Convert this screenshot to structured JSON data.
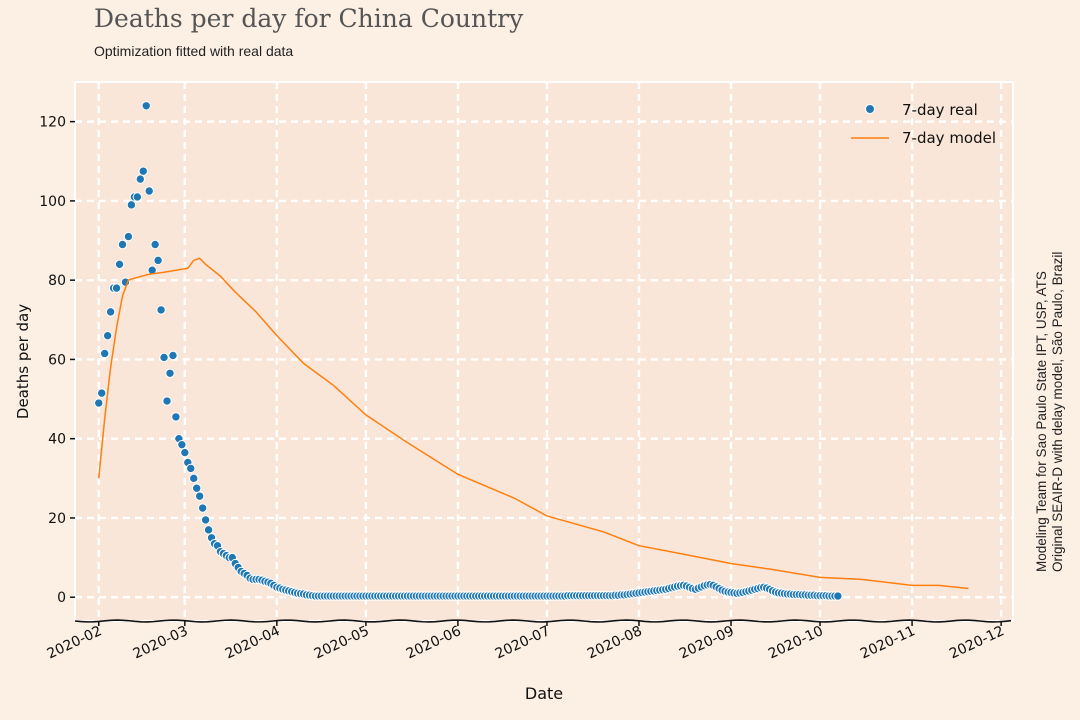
{
  "title": "Deaths per day for China Country",
  "subtitle": "Optimization fitted with real data",
  "side_note": {
    "line1": "Modeling Team for Sao Paulo State IPT, USP, ATS",
    "line2": "Original SEAIR-D with delay model, São Paulo, Brazil"
  },
  "colors": {
    "background": "#fcefe4",
    "plot_background": "#f9e6d8",
    "grid": "#ffffff",
    "real": "#1f77b4",
    "model": "#ff7f0e"
  },
  "chart_data": {
    "type": "scatter",
    "xlabel": "Date",
    "ylabel": "Deaths per day",
    "xlim": [
      "2020-01-24",
      "2020-12-05"
    ],
    "ylim": [
      -6,
      130
    ],
    "grid": true,
    "legend_position": "top-right",
    "x_ticks": [
      "2020-02",
      "2020-03",
      "2020-04",
      "2020-05",
      "2020-06",
      "2020-07",
      "2020-08",
      "2020-09",
      "2020-10",
      "2020-11",
      "2020-12"
    ],
    "y_ticks": [
      0,
      20,
      40,
      60,
      80,
      100,
      120
    ],
    "series": [
      {
        "name": "7-day real",
        "kind": "scatter",
        "x_start": "2020-02-01",
        "values": [
          49,
          51.5,
          61.5,
          66,
          72,
          78,
          78,
          84,
          89,
          79.5,
          91,
          99,
          101,
          101,
          105.5,
          107.5,
          124,
          102.5,
          82.5,
          89,
          85,
          72.5,
          60.5,
          49.5,
          56.5,
          61,
          45.5,
          40,
          38.5,
          36.5,
          34,
          32.5,
          30,
          27.5,
          25.5,
          22.5,
          19.5,
          17,
          15,
          13.5,
          13,
          11.5,
          11,
          10.5,
          10,
          10,
          8.5,
          7.5,
          6.5,
          6,
          5.5,
          4.8,
          4.5,
          4.5,
          4.5,
          4.3,
          4,
          3.8,
          3.5,
          3,
          2.5,
          2.3,
          2,
          1.8,
          1.6,
          1.4,
          1.2,
          1,
          0.9,
          0.8,
          0.6,
          0.5,
          0.4,
          0.3,
          0.3,
          0.3,
          0.3,
          0.3,
          0.3,
          0.3,
          0.3,
          0.3,
          0.3,
          0.3,
          0.3,
          0.3,
          0.3,
          0.3,
          0.3,
          0.3,
          0.3,
          0.3,
          0.3,
          0.3,
          0.3,
          0.3,
          0.3,
          0.3,
          0.3,
          0.3,
          0.3,
          0.3,
          0.3,
          0.3,
          0.3,
          0.3,
          0.3,
          0.3,
          0.3,
          0.3,
          0.3,
          0.3,
          0.3,
          0.3,
          0.3,
          0.3,
          0.3,
          0.3,
          0.3,
          0.3,
          0.3,
          0.3,
          0.3,
          0.3,
          0.3,
          0.3,
          0.3,
          0.3,
          0.3,
          0.3,
          0.3,
          0.3,
          0.3,
          0.3,
          0.3,
          0.3,
          0.3,
          0.3,
          0.3,
          0.3,
          0.3,
          0.3,
          0.3,
          0.3,
          0.3,
          0.3,
          0.3,
          0.3,
          0.3,
          0.3,
          0.3,
          0.3,
          0.3,
          0.3,
          0.3,
          0.3,
          0.3,
          0.3,
          0.4,
          0.4,
          0.4,
          0.4,
          0.4,
          0.4,
          0.4,
          0.4,
          0.4,
          0.4,
          0.4,
          0.4,
          0.4,
          0.4,
          0.4,
          0.4,
          0.5,
          0.5,
          0.6,
          0.6,
          0.7,
          0.8,
          0.9,
          1,
          1.1,
          1.2,
          1.3,
          1.4,
          1.5,
          1.6,
          1.7,
          1.8,
          1.9,
          2,
          2.2,
          2.4,
          2.6,
          2.8,
          2.9,
          3,
          2.8,
          2.5,
          2.2,
          2,
          2.3,
          2.6,
          2.9,
          3.1,
          3.2,
          3,
          2.6,
          2.2,
          1.8,
          1.5,
          1.3,
          1.2,
          1.1,
          1,
          1.1,
          1.2,
          1.4,
          1.6,
          1.8,
          2,
          2.2,
          2.4,
          2.5,
          2.3,
          2,
          1.6,
          1.3,
          1.1,
          1,
          0.9,
          0.8,
          0.8,
          0.7,
          0.7,
          0.7,
          0.6,
          0.6,
          0.5,
          0.5,
          0.5,
          0.4,
          0.4,
          0.4,
          0.4,
          0.3,
          0.3,
          0.3,
          0.3
        ]
      },
      {
        "name": "7-day model",
        "kind": "line",
        "points": [
          [
            "2020-02-01",
            30
          ],
          [
            "2020-02-03",
            45
          ],
          [
            "2020-02-05",
            58
          ],
          [
            "2020-02-07",
            68
          ],
          [
            "2020-02-09",
            76
          ],
          [
            "2020-02-11",
            80
          ],
          [
            "2020-02-13",
            80.5
          ],
          [
            "2020-02-18",
            81.5
          ],
          [
            "2020-02-23",
            82
          ],
          [
            "2020-02-27",
            82.5
          ],
          [
            "2020-03-02",
            83
          ],
          [
            "2020-03-04",
            85
          ],
          [
            "2020-03-06",
            85.5
          ],
          [
            "2020-03-08",
            84
          ],
          [
            "2020-03-13",
            81
          ],
          [
            "2020-03-18",
            77
          ],
          [
            "2020-03-25",
            72
          ],
          [
            "2020-04-01",
            66
          ],
          [
            "2020-04-10",
            59
          ],
          [
            "2020-04-20",
            53.5
          ],
          [
            "2020-05-01",
            46
          ],
          [
            "2020-05-15",
            39
          ],
          [
            "2020-06-01",
            31
          ],
          [
            "2020-06-20",
            25
          ],
          [
            "2020-07-01",
            20.5
          ],
          [
            "2020-07-20",
            16.5
          ],
          [
            "2020-08-01",
            13
          ],
          [
            "2020-08-15",
            11
          ],
          [
            "2020-09-01",
            8.5
          ],
          [
            "2020-09-15",
            7
          ],
          [
            "2020-10-01",
            5
          ],
          [
            "2020-10-15",
            4.5
          ],
          [
            "2020-11-01",
            3
          ],
          [
            "2020-11-10",
            3
          ],
          [
            "2020-11-20",
            2.2
          ]
        ]
      }
    ]
  }
}
